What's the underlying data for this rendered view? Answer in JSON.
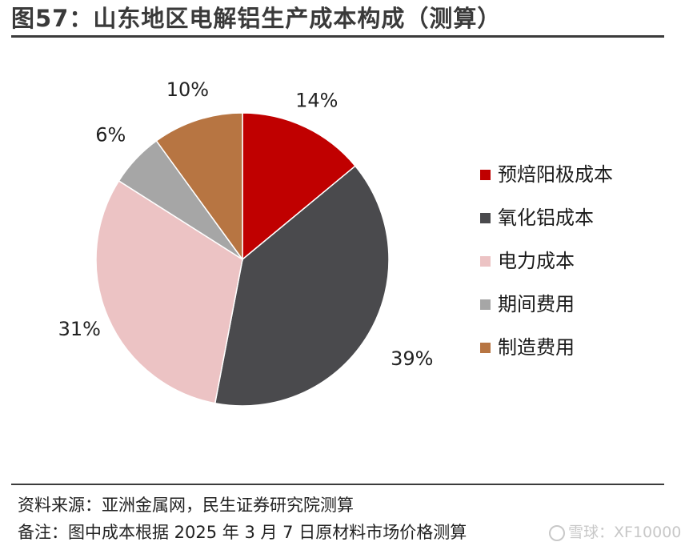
{
  "title": "图57：山东地区电解铝生产成本构成（测算）",
  "chart_data": {
    "type": "pie",
    "start": "12 o'clock, clockwise",
    "slices": [
      {
        "label": "预焙阳极成本",
        "value": 14,
        "value_label": "14%",
        "color": "#c00000"
      },
      {
        "label": "氧化铝成本",
        "value": 39,
        "value_label": "39%",
        "color": "#4a4a4d"
      },
      {
        "label": "电力成本",
        "value": 31,
        "value_label": "31%",
        "color": "#ecc3c4"
      },
      {
        "label": "期间费用",
        "value": 6,
        "value_label": "6%",
        "color": "#a6a6a6"
      },
      {
        "label": "制造费用",
        "value": 10,
        "value_label": "10%",
        "color": "#b77542"
      }
    ],
    "legend_position": "right"
  },
  "footer": {
    "source": "资料来源：亚洲金属网，民生证券研究院测算",
    "note": "备注：图中成本根据 2025 年 3 月 7 日原材料市场价格测算"
  },
  "watermark": {
    "text": "雪球：XF10000",
    "icon": "snowball-logo-icon"
  }
}
